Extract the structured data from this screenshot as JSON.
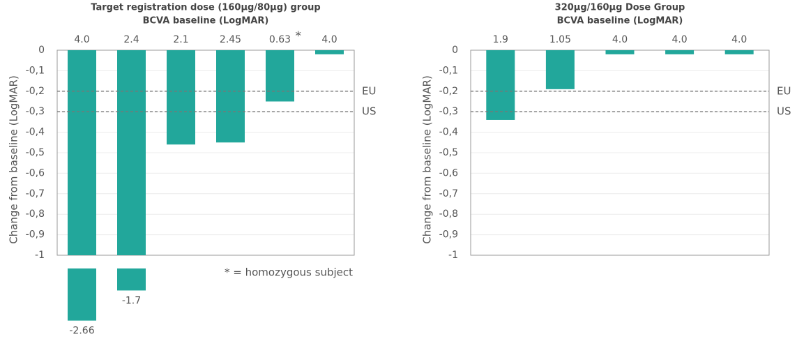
{
  "chart_data": [
    {
      "type": "bar",
      "title": "Target registration dose (160µg/80µg) group",
      "subtitle": "BCVA baseline (LogMAR)",
      "y_label": "Change from baseline (LogMAR)",
      "categories": [
        "4.0",
        "2.4",
        "2.1",
        "2.45",
        "0.63",
        "4.0"
      ],
      "values": [
        -2.66,
        -1.7,
        -0.46,
        -0.45,
        -0.25,
        -0.02
      ],
      "color": "#22a79b",
      "axis_break": true,
      "ylim": [
        -1,
        0
      ],
      "yticks": [
        0,
        {
          "value": -0.1,
          "label": "-0,1"
        },
        {
          "value": -0.2,
          "label": "-0,2"
        },
        {
          "value": -0.3,
          "label": "-0,3"
        },
        {
          "value": -0.4,
          "label": "-0,4"
        },
        {
          "value": -0.5,
          "label": "-0,5"
        },
        {
          "value": -0.6,
          "label": "-0,6"
        },
        {
          "value": -0.7,
          "label": "-0,7"
        },
        {
          "value": -0.8,
          "label": "-0,8"
        },
        {
          "value": -0.9,
          "label": "-0,9"
        },
        -1
      ],
      "grid": true,
      "reference_lines": [
        {
          "label": "EU",
          "value": -0.2
        },
        {
          "label": "US",
          "value": -0.3
        }
      ],
      "footnote": {
        "mark": "*",
        "category_index": 4,
        "text": "* = homozygous subject"
      }
    },
    {
      "type": "bar",
      "title": "320µg/160µg Dose Group",
      "subtitle": "BCVA baseline (LogMAR)",
      "y_label": "Change from baseline (LogMAR)",
      "categories": [
        "1.9",
        "1.05",
        "4.0",
        "4.0",
        "4.0"
      ],
      "values": [
        -0.34,
        -0.19,
        -0.02,
        -0.02,
        -0.02
      ],
      "color": "#22a79b",
      "ylim": [
        -1,
        0
      ],
      "yticks": [
        0,
        {
          "value": -0.1,
          "label": "-0,1"
        },
        {
          "value": -0.2,
          "label": "-0,2"
        },
        {
          "value": -0.3,
          "label": "-0,3"
        },
        {
          "value": -0.4,
          "label": "-0,4"
        },
        {
          "value": -0.5,
          "label": "-0,5"
        },
        {
          "value": -0.6,
          "label": "-0,6"
        },
        {
          "value": -0.7,
          "label": "-0,7"
        },
        {
          "value": -0.8,
          "label": "-0,8"
        },
        {
          "value": -0.9,
          "label": "-0,9"
        },
        -1
      ],
      "grid": true,
      "reference_lines": [
        {
          "label": "EU",
          "value": -0.2
        },
        {
          "label": "US",
          "value": -0.3
        }
      ]
    }
  ]
}
